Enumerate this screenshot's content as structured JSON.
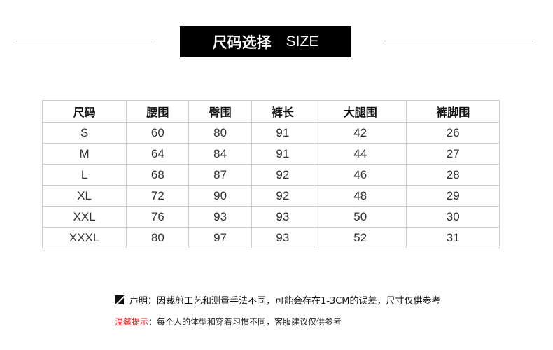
{
  "header": {
    "title_zh": "尺码选择",
    "title_en": "SIZE"
  },
  "table": {
    "columns": [
      "尺码",
      "腰围",
      "臀围",
      "裤长",
      "大腿围",
      "裤脚围"
    ],
    "rows": [
      [
        "S",
        "60",
        "80",
        "91",
        "42",
        "26"
      ],
      [
        "M",
        "64",
        "84",
        "91",
        "44",
        "27"
      ],
      [
        "L",
        "68",
        "87",
        "92",
        "46",
        "28"
      ],
      [
        "XL",
        "72",
        "90",
        "92",
        "48",
        "29"
      ],
      [
        "XXL",
        "76",
        "93",
        "93",
        "50",
        "30"
      ],
      [
        "XXXL",
        "80",
        "97",
        "93",
        "52",
        "31"
      ]
    ]
  },
  "notes": {
    "disclaimer": "声明：因裁剪工艺和测量手法不同，可能会存在1-3CM的误差，尺寸仅供参考",
    "tip_label": "温馨提示",
    "tip_text": "：每个人的体型和穿着习惯不同，客服建议仅供参考",
    "accent_color": "#e4211d"
  }
}
